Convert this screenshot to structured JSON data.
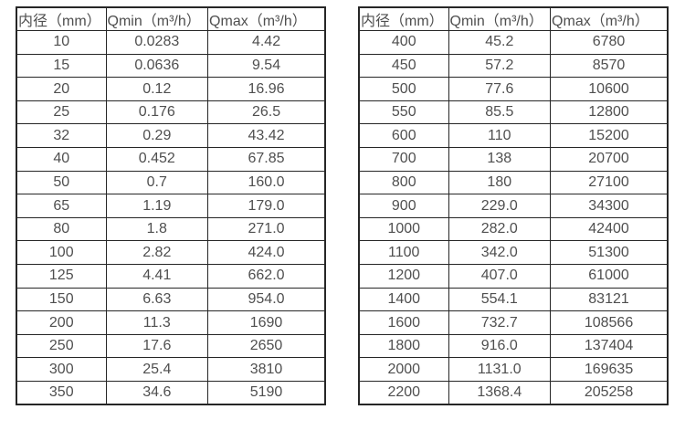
{
  "page": {
    "background_color": "#ffffff",
    "text_color": "#4f4f4f",
    "border_color": "#262626"
  },
  "chart_data": [
    {
      "type": "table",
      "title": "",
      "columns": [
        "内径（mm）",
        "Qmin（m³/h）",
        "Qmax（m³/h）"
      ],
      "rows": [
        [
          "10",
          "0.0283",
          "4.42"
        ],
        [
          "15",
          "0.0636",
          "9.54"
        ],
        [
          "20",
          "0.12",
          "16.96"
        ],
        [
          "25",
          "0.176",
          "26.5"
        ],
        [
          "32",
          "0.29",
          "43.42"
        ],
        [
          "40",
          "0.452",
          "67.85"
        ],
        [
          "50",
          "0.7",
          "160.0"
        ],
        [
          "65",
          "1.19",
          "179.0"
        ],
        [
          "80",
          "1.8",
          "271.0"
        ],
        [
          "100",
          "2.82",
          "424.0"
        ],
        [
          "125",
          "4.41",
          "662.0"
        ],
        [
          "150",
          "6.63",
          "954.0"
        ],
        [
          "200",
          "11.3",
          "1690"
        ],
        [
          "250",
          "17.6",
          "2650"
        ],
        [
          "300",
          "25.4",
          "3810"
        ],
        [
          "350",
          "34.6",
          "5190"
        ]
      ]
    },
    {
      "type": "table",
      "title": "",
      "columns": [
        "内径（mm）",
        "Qmin（m³/h）",
        "Qmax（m³/h）"
      ],
      "rows": [
        [
          "400",
          "45.2",
          "6780"
        ],
        [
          "450",
          "57.2",
          "8570"
        ],
        [
          "500",
          "77.6",
          "10600"
        ],
        [
          "550",
          "85.5",
          "12800"
        ],
        [
          "600",
          "110",
          "15200"
        ],
        [
          "700",
          "138",
          "20700"
        ],
        [
          "800",
          "180",
          "27100"
        ],
        [
          "900",
          "229.0",
          "34300"
        ],
        [
          "1000",
          "282.0",
          "42400"
        ],
        [
          "1100",
          "342.0",
          "51300"
        ],
        [
          "1200",
          "407.0",
          "61000"
        ],
        [
          "1400",
          "554.1",
          "83121"
        ],
        [
          "1600",
          "732.7",
          "108566"
        ],
        [
          "1800",
          "916.0",
          "137404"
        ],
        [
          "2000",
          "1131.0",
          "169635"
        ],
        [
          "2200",
          "1368.4",
          "205258"
        ]
      ]
    }
  ]
}
